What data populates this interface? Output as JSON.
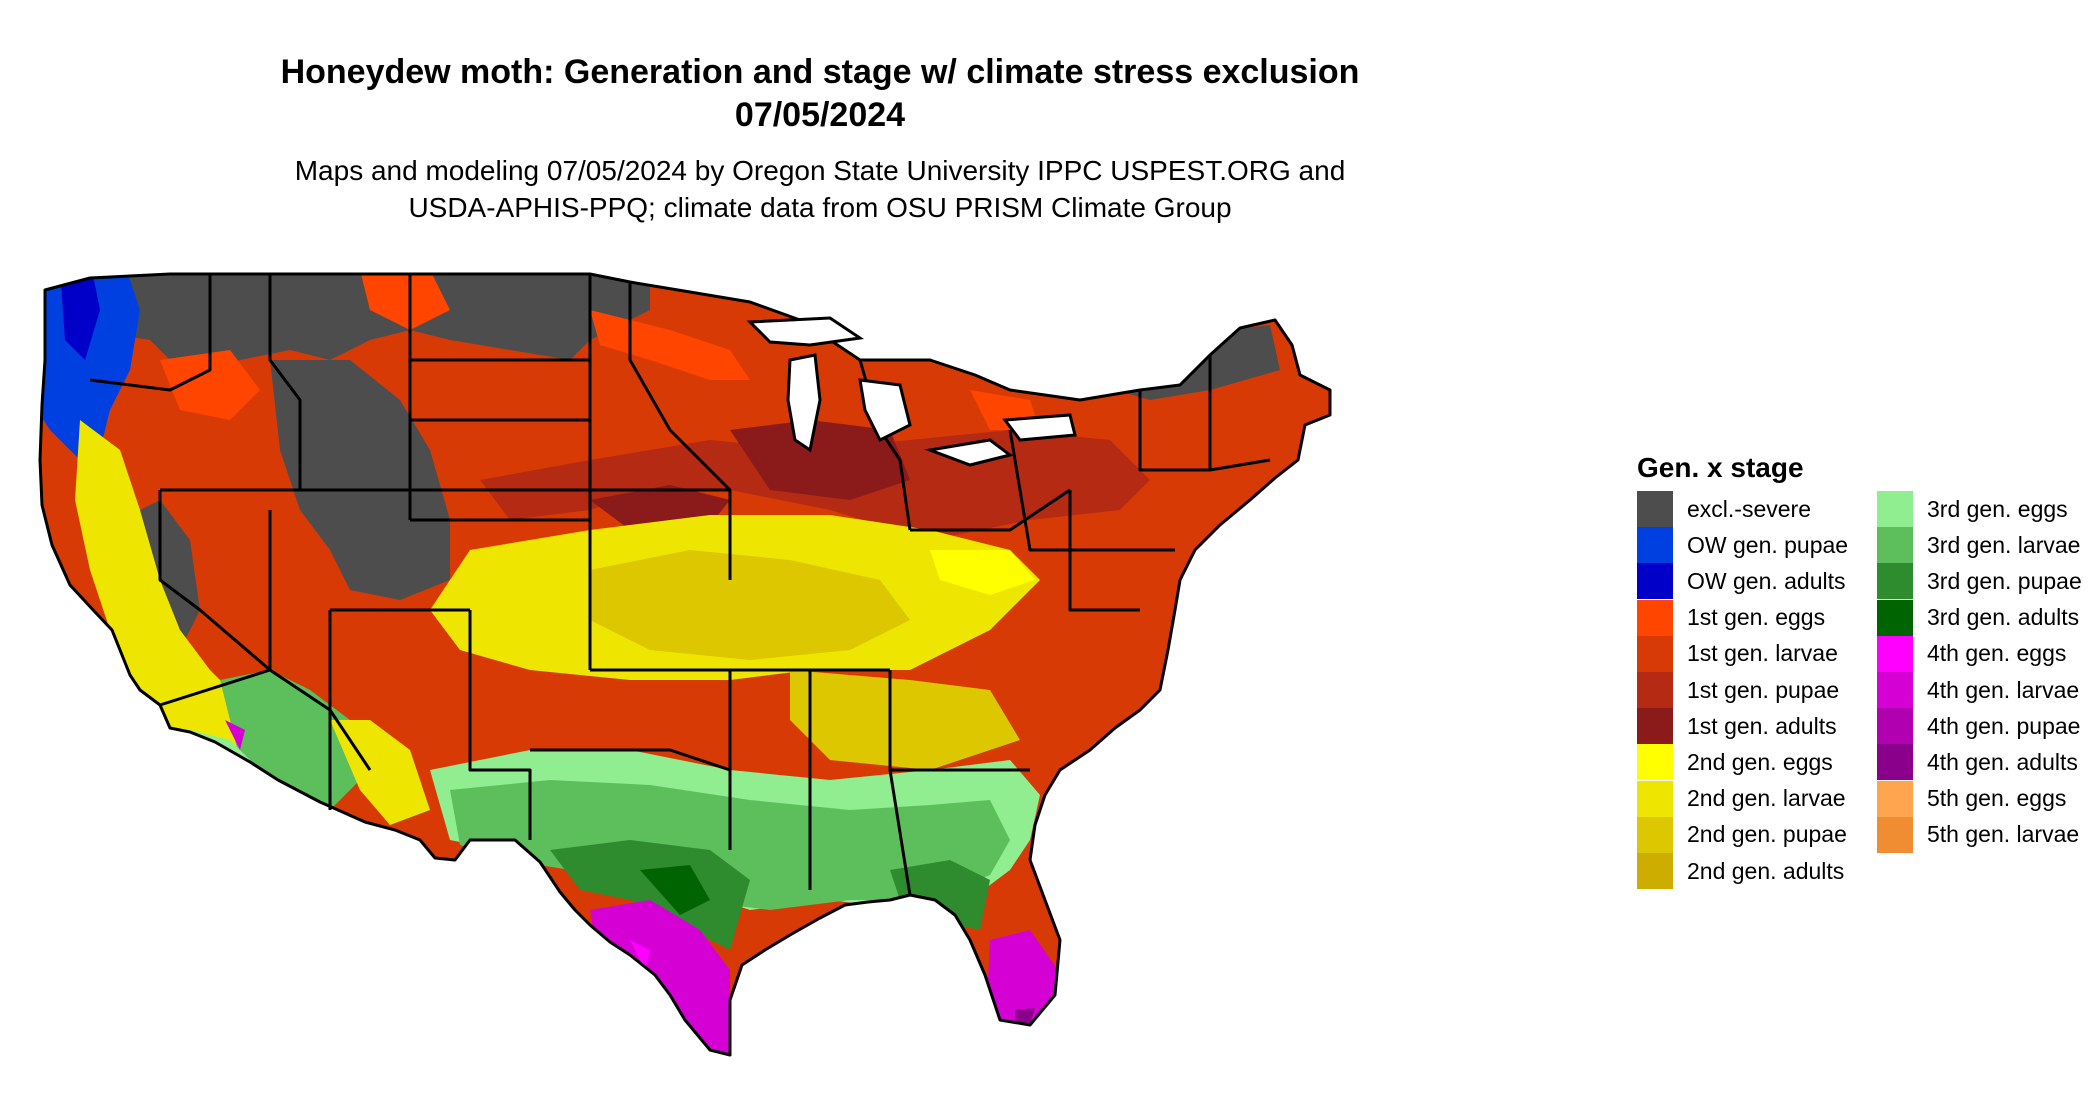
{
  "title_line1": "Honeydew moth: Generation and stage w/ climate stress exclusion",
  "title_line2": "07/05/2024",
  "subtitle_line1": "Maps and modeling 07/05/2024 by Oregon State University IPPC USPEST.ORG and",
  "subtitle_line2": "USDA-APHIS-PPQ; climate data from OSU PRISM Climate Group",
  "legend": {
    "title": "Gen. x stage",
    "items": [
      {
        "label": "excl.-severe",
        "color": "#4d4d4d"
      },
      {
        "label": "OW gen. pupae",
        "color": "#0040e0"
      },
      {
        "label": "OW gen. adults",
        "color": "#0000c8"
      },
      {
        "label": "1st gen. eggs",
        "color": "#ff4500"
      },
      {
        "label": "1st gen. larvae",
        "color": "#d83a06"
      },
      {
        "label": "1st gen. pupae",
        "color": "#b52a12"
      },
      {
        "label": "1st gen. adults",
        "color": "#8b1a1a"
      },
      {
        "label": "2nd gen. eggs",
        "color": "#ffff00"
      },
      {
        "label": "2nd gen. larvae",
        "color": "#eee600"
      },
      {
        "label": "2nd gen. pupae",
        "color": "#dcc700"
      },
      {
        "label": "2nd gen. adults",
        "color": "#ccad00"
      },
      {
        "label": "3rd gen. eggs",
        "color": "#90ee90"
      },
      {
        "label": "3rd gen. larvae",
        "color": "#5cbf5c"
      },
      {
        "label": "3rd gen. pupae",
        "color": "#2e8b2e"
      },
      {
        "label": "3rd gen. adults",
        "color": "#006400"
      },
      {
        "label": "4th gen. eggs",
        "color": "#ff00ff"
      },
      {
        "label": "4th gen. larvae",
        "color": "#d400d4"
      },
      {
        "label": "4th gen. pupae",
        "color": "#b000b0"
      },
      {
        "label": "4th gen. adults",
        "color": "#8b008b"
      },
      {
        "label": "5th gen. eggs",
        "color": "#ffa54f"
      },
      {
        "label": "5th gen. larvae",
        "color": "#f08c32"
      }
    ]
  }
}
